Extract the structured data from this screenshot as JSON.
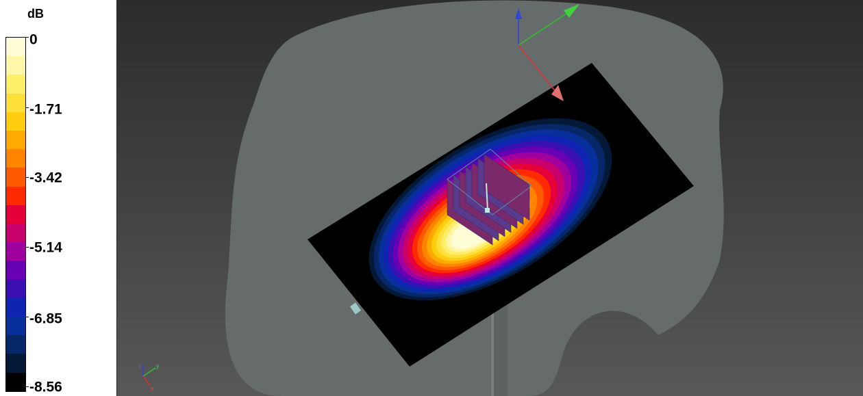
{
  "legend": {
    "unit": "dB",
    "ticks": [
      "0",
      "-1.71",
      "-3.42",
      "-5.14",
      "-6.85",
      "-8.56"
    ],
    "colors": [
      "#fffdd6",
      "#fff6a8",
      "#ffee6a",
      "#ffe03a",
      "#ffcd10",
      "#ffaa00",
      "#ff8400",
      "#ff5a00",
      "#ff2a00",
      "#e5003a",
      "#c8006e",
      "#a0009e",
      "#6800b4",
      "#3a10b4",
      "#1024b4",
      "#08309a",
      "#062868",
      "#041838",
      "#000000"
    ]
  },
  "viewport": {
    "background_top": "#2c2c2c",
    "background_bottom": "#585858",
    "head_color": "#666c6c",
    "substrate_color": "#000000"
  },
  "axes": {
    "x_label": "x",
    "y_label": "y",
    "z_label": "z",
    "x_color": "#e03030",
    "y_color": "#30c030",
    "z_color": "#3040e0"
  }
}
